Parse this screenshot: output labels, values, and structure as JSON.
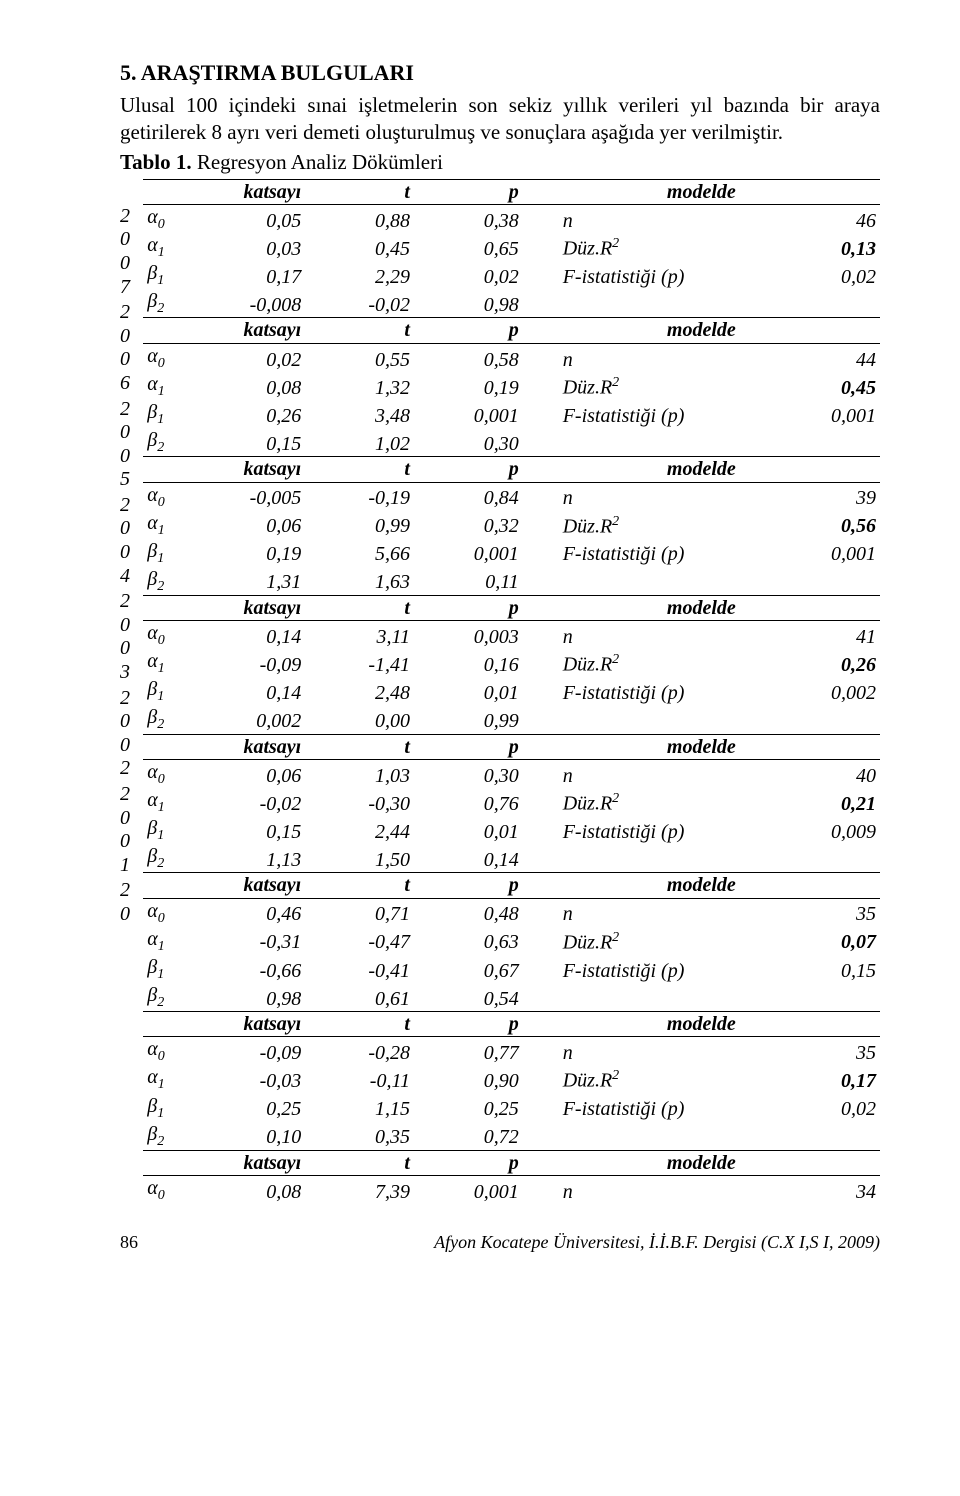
{
  "heading": "5. ARAŞTIRMA BULGULARI",
  "intro": "Ulusal 100 içindeki sınai işletmelerin son sekiz yıllık verileri yıl bazında bir araya getirilerek 8 ayrı veri demeti oluşturulmuş ve sonuçlara aşağıda yer verilmiştir.",
  "caption_bold": "Tablo 1.",
  "caption_rest": " Regresyon Analiz Dökümleri",
  "hdr": {
    "sym": "",
    "c1": "katsayı",
    "c2": "t",
    "c3": "p",
    "c4": "modelde",
    "c5": ""
  },
  "years": [
    "2007",
    "2006",
    "2005",
    "2004",
    "2003",
    "2002",
    "2001",
    "20"
  ],
  "blocks": [
    {
      "r1": {
        "s": "α",
        "sub": "0",
        "a": "0,05",
        "b": "0,88",
        "c": "0,38",
        "d": "n",
        "e": "46",
        "bold": false
      },
      "r2": {
        "s": "α",
        "sub": "1",
        "a": "0,03",
        "b": "0,45",
        "c": "0,65",
        "d": "Düz.R",
        "sup": "2",
        "e": "0,13",
        "bold": true
      },
      "r3": {
        "s": "β",
        "sub": "1",
        "a": "0,17",
        "b": "2,29",
        "c": "0,02",
        "d": "F-istatistiği (p)",
        "e": "0,02",
        "bold": false
      },
      "r4": {
        "s": "β",
        "sub": "2",
        "a": "-0,008",
        "b": "-0,02",
        "c": "0,98",
        "d": "",
        "e": "",
        "bold": false
      }
    },
    {
      "r1": {
        "s": "α",
        "sub": "0",
        "a": "0,02",
        "b": "0,55",
        "c": "0,58",
        "d": "n",
        "e": "44",
        "bold": false
      },
      "r2": {
        "s": "α",
        "sub": "1",
        "a": "0,08",
        "b": "1,32",
        "c": "0,19",
        "d": "Düz.R",
        "sup": "2",
        "e": "0,45",
        "bold": true
      },
      "r3": {
        "s": "β",
        "sub": "1",
        "a": "0,26",
        "b": "3,48",
        "c": "0,001",
        "d": "F-istatistiği (p)",
        "e": "0,001",
        "bold": false
      },
      "r4": {
        "s": "β",
        "sub": "2",
        "a": "0,15",
        "b": "1,02",
        "c": "0,30",
        "d": "",
        "e": "",
        "bold": false
      }
    },
    {
      "r1": {
        "s": "α",
        "sub": "0",
        "a": "-0,005",
        "b": "-0,19",
        "c": "0,84",
        "d": "n",
        "e": "39",
        "bold": false
      },
      "r2": {
        "s": "α",
        "sub": "1",
        "a": "0,06",
        "b": "0,99",
        "c": "0,32",
        "d": "Düz.R",
        "sup": "2",
        "e": "0,56",
        "bold": true
      },
      "r3": {
        "s": "β",
        "sub": "1",
        "a": "0,19",
        "b": "5,66",
        "c": "0,001",
        "d": "F-istatistiği (p)",
        "e": "0,001",
        "bold": false
      },
      "r4": {
        "s": "β",
        "sub": "2",
        "a": "1,31",
        "b": "1,63",
        "c": "0,11",
        "d": "",
        "e": "",
        "bold": false
      }
    },
    {
      "r1": {
        "s": "α",
        "sub": "0",
        "a": "0,14",
        "b": "3,11",
        "c": "0,003",
        "d": "n",
        "e": "41",
        "bold": false
      },
      "r2": {
        "s": "α",
        "sub": "1",
        "a": "-0,09",
        "b": "-1,41",
        "c": "0,16",
        "d": "Düz.R",
        "sup": "2",
        "e": "0,26",
        "bold": true
      },
      "r3": {
        "s": "β",
        "sub": "1",
        "a": "0,14",
        "b": "2,48",
        "c": "0,01",
        "d": "F-istatistiği (p)",
        "e": "0,002",
        "bold": false
      },
      "r4": {
        "s": "β",
        "sub": "2",
        "a": "0,002",
        "b": "0,00",
        "c": "0,99",
        "d": "",
        "e": "",
        "bold": false
      }
    },
    {
      "r1": {
        "s": "α",
        "sub": "0",
        "a": "0,06",
        "b": "1,03",
        "c": "0,30",
        "d": "n",
        "e": "40",
        "bold": false
      },
      "r2": {
        "s": "α",
        "sub": "1",
        "a": "-0,02",
        "b": "-0,30",
        "c": "0,76",
        "d": "Düz.R",
        "sup": "2",
        "e": "0,21",
        "bold": true
      },
      "r3": {
        "s": "β",
        "sub": "1",
        "a": "0,15",
        "b": "2,44",
        "c": "0,01",
        "d": "F-istatistiği (p)",
        "e": "0,009",
        "bold": false
      },
      "r4": {
        "s": "β",
        "sub": "2",
        "a": "1,13",
        "b": "1,50",
        "c": "0,14",
        "d": "",
        "e": "",
        "bold": false
      }
    },
    {
      "r1": {
        "s": "α",
        "sub": "0",
        "a": "0,46",
        "b": "0,71",
        "c": "0,48",
        "d": "n",
        "e": "35",
        "bold": false
      },
      "r2": {
        "s": "α",
        "sub": "1",
        "a": "-0,31",
        "b": "-0,47",
        "c": "0,63",
        "d": "Düz.R",
        "sup": "2",
        "e": "0,07",
        "bold": true
      },
      "r3": {
        "s": "β",
        "sub": "1",
        "a": "-0,66",
        "b": "-0,41",
        "c": "0,67",
        "d": "F-istatistiği (p)",
        "e": "0,15",
        "bold": false
      },
      "r4": {
        "s": "β",
        "sub": "2",
        "a": "0,98",
        "b": "0,61",
        "c": "0,54",
        "d": "",
        "e": "",
        "bold": false
      }
    },
    {
      "r1": {
        "s": "α",
        "sub": "0",
        "a": "-0,09",
        "b": "-0,28",
        "c": "0,77",
        "d": "n",
        "e": "35",
        "bold": false
      },
      "r2": {
        "s": "α",
        "sub": "1",
        "a": "-0,03",
        "b": "-0,11",
        "c": "0,90",
        "d": "Düz.R",
        "sup": "2",
        "e": "0,17",
        "bold": true
      },
      "r3": {
        "s": "β",
        "sub": "1",
        "a": "0,25",
        "b": "1,15",
        "c": "0,25",
        "d": "F-istatistiği (p)",
        "e": "0,02",
        "bold": false
      },
      "r4": {
        "s": "β",
        "sub": "2",
        "a": "0,10",
        "b": "0,35",
        "c": "0,72",
        "d": "",
        "e": "",
        "bold": false
      }
    }
  ],
  "tail": {
    "r1": {
      "s": "α",
      "sub": "0",
      "a": "0,08",
      "b": "7,39",
      "c": "0,001",
      "d": "n",
      "e": "34",
      "bold": false
    }
  },
  "footer_page": "86",
  "footer_text": "Afyon Kocatepe Üniversitesi, İ.İ.B.F. Dergisi (C.X I,S I, 2009)"
}
